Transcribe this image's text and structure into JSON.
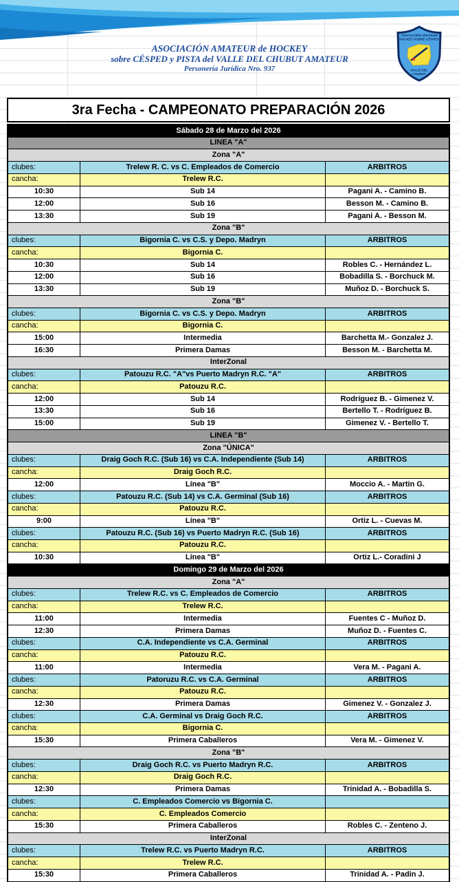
{
  "org": {
    "line1": "ASOCIACIÓN AMATEUR de HOCKEY",
    "line2": "sobre CÉSPED y PISTA del VALLE DEL CHUBUT AMATEUR",
    "line3": "Personería Jurídica Nro. 937"
  },
  "logo": {
    "top1": "ASOCIACIÓN AMATEUR",
    "top2": "HOCKEY SOBRE CÉSPED",
    "bottom1": "VALLE DEL",
    "bottom2": "CHUBUT"
  },
  "title": "3ra Fecha - CAMPEONATO PREPARACIÓN 2026",
  "labels": {
    "clubes": "clubes:",
    "cancha": "cancha:"
  },
  "colors": {
    "cyan": "#A6DBE8",
    "yellow": "#FBF9A5",
    "grayDark": "#9B9B9B",
    "grayLight": "#D8D8D8",
    "navy": "#1F4E9C",
    "swoosh3": "#1C89D4"
  },
  "rows": [
    {
      "type": "date",
      "text": "Sábado 28 de Marzo del 2026"
    },
    {
      "type": "linea",
      "text": "LINEA \"A\""
    },
    {
      "type": "zona",
      "text": "Zona \"A\""
    },
    {
      "type": "clubes",
      "match": "Trelew R. C. vs C. Empleados de Comercio",
      "arbitros": "ARBITROS"
    },
    {
      "type": "cancha",
      "venue": "Trelew R.C."
    },
    {
      "type": "match",
      "time": "10:30",
      "category": "Sub 14",
      "referees": "Pagani A. - Camino B."
    },
    {
      "type": "match",
      "time": "12:00",
      "category": "Sub 16",
      "referees": "Besson M. - Camino B."
    },
    {
      "type": "match",
      "time": "13:30",
      "category": "Sub 19",
      "referees": "Pagani A. - Besson M."
    },
    {
      "type": "zona",
      "text": "Zona \"B\""
    },
    {
      "type": "clubes",
      "match": "Bigornia C.  vs C.S. y Depo. Madryn",
      "arbitros": "ARBITROS"
    },
    {
      "type": "cancha",
      "venue": "Bigornia C."
    },
    {
      "type": "match",
      "time": "10:30",
      "category": "Sub 14",
      "referees": "Robles C. - Hernández L."
    },
    {
      "type": "match",
      "time": "12:00",
      "category": "Sub 16",
      "referees": "Bobadilla S. - Borchuck M."
    },
    {
      "type": "match",
      "time": "13:30",
      "category": "Sub 19",
      "referees": "Muñoz D. - Borchuck S."
    },
    {
      "type": "zona",
      "text": "Zona \"B\""
    },
    {
      "type": "clubes",
      "match": "Bigornia C.  vs C.S. y Depo. Madryn",
      "arbitros": "ARBITROS"
    },
    {
      "type": "cancha",
      "venue": "Bigornia C."
    },
    {
      "type": "match",
      "time": "15:00",
      "category": "Intermedia",
      "referees": "Barchetta M.- Gonzalez J."
    },
    {
      "type": "match",
      "time": "16:30",
      "category": "Primera Damas",
      "referees": "Besson M. - Barchetta M."
    },
    {
      "type": "zona",
      "text": "InterZonal"
    },
    {
      "type": "clubes",
      "match": "Patouzu R.C. \"A\"vs  Puerto Madryn R.C. \"A\"",
      "arbitros": "ARBITROS"
    },
    {
      "type": "cancha",
      "venue": "Patouzu R.C."
    },
    {
      "type": "match",
      "time": "12:00",
      "category": "Sub 14",
      "referees": "Rodríguez B. - Gimenez V."
    },
    {
      "type": "match",
      "time": "13:30",
      "category": "Sub 16",
      "referees": "Bertello T. - Rodríguez B."
    },
    {
      "type": "match",
      "time": "15:00",
      "category": "Sub 19",
      "referees": "Gimenez V. - Bertello T."
    },
    {
      "type": "linea",
      "text": "LINEA \"B\""
    },
    {
      "type": "zona",
      "text": "Zona \"ÚNICA\""
    },
    {
      "type": "clubes",
      "match": "Draig Goch R.C. (Sub 16) vs C.A. Independiente (Sub 14)",
      "arbitros": "ARBITROS"
    },
    {
      "type": "cancha",
      "venue": "Draig Goch R.C."
    },
    {
      "type": "match",
      "time": "12:00",
      "category": "Línea \"B\"",
      "referees": "Moccio A. - Martin G."
    },
    {
      "type": "clubes",
      "match": "Patouzu R.C. (Sub 14) vs C.A. Germinal (Sub 16)",
      "arbitros": "ARBITROS"
    },
    {
      "type": "cancha",
      "venue": "Patouzu R.C."
    },
    {
      "type": "match",
      "time": "9:00",
      "category": "Línea \"B\"",
      "referees": "Ortiz L. - Cuevas M."
    },
    {
      "type": "clubes",
      "match": "Patouzu R.C. (Sub 16) vs  Puerto Madryn R.C. (Sub 16)",
      "arbitros": "ARBITROS"
    },
    {
      "type": "cancha",
      "venue": "Patouzu R.C."
    },
    {
      "type": "match",
      "time": "10:30",
      "category": "Línea \"B\"",
      "referees": "Ortiz L.- Coradini J"
    },
    {
      "type": "date",
      "text": "Domingo 29 de Marzo del 2026"
    },
    {
      "type": "zona",
      "text": "Zona \"A\""
    },
    {
      "type": "clubes",
      "match": "Trelew R.C. vs C. Empleados de Comercio",
      "arbitros": "ARBITROS"
    },
    {
      "type": "cancha",
      "venue": "Trelew R.C."
    },
    {
      "type": "match",
      "time": "11:00",
      "category": "Intermedia",
      "referees": "Fuentes C - Muñoz D."
    },
    {
      "type": "match",
      "time": "12:30",
      "category": "Primera Damas",
      "referees": "Muñoz D. - Fuentes C."
    },
    {
      "type": "clubes",
      "match": "C.A. Independiente vs C.A. Germinal",
      "arbitros": "ARBITROS"
    },
    {
      "type": "cancha",
      "venue": "Patouzu R.C."
    },
    {
      "type": "match",
      "time": "11:00",
      "category": "Intermedia",
      "referees": "Vera M. - Pagani A."
    },
    {
      "type": "clubes",
      "match": "Patoruzu R.C. vs C.A. Germinal",
      "arbitros": "ARBITROS"
    },
    {
      "type": "cancha",
      "venue": "Patouzu R.C."
    },
    {
      "type": "match",
      "time": "12:30",
      "category": "Primera Damas",
      "referees": "Gimenez V. - Gonzalez J."
    },
    {
      "type": "clubes",
      "match": "C.A. Germinal vs Draig Goch R.C.",
      "arbitros": "ARBITROS"
    },
    {
      "type": "cancha",
      "venue": "Bigornia C."
    },
    {
      "type": "match",
      "time": "15:30",
      "category": "Primera Caballeros",
      "referees": "Vera M. - Gimenez V."
    },
    {
      "type": "zona",
      "text": "Zona \"B\""
    },
    {
      "type": "clubes",
      "match": "Draig Goch R.C. vs Puerto Madryn R.C.",
      "arbitros": "ARBITROS"
    },
    {
      "type": "cancha",
      "venue": "Draig Goch R.C."
    },
    {
      "type": "match",
      "time": "12:30",
      "category": "Primera Damas",
      "referees": "Trinidad A. - Bobadilla S."
    },
    {
      "type": "clubes",
      "match": "C. Empleados Comercio vs Bigornia C.",
      "arbitros": ""
    },
    {
      "type": "cancha",
      "venue": "C. Empleados Comercio"
    },
    {
      "type": "match",
      "time": "15:30",
      "category": "Primera Caballeros",
      "referees": "Robles C. - Zenteno J."
    },
    {
      "type": "zona",
      "text": "InterZonal"
    },
    {
      "type": "clubes",
      "match": "Trelew R.C. vs Puerto Madryn R.C.",
      "arbitros": "ARBITROS"
    },
    {
      "type": "cancha",
      "venue": "Trelew R.C."
    },
    {
      "type": "match",
      "time": "15:30",
      "category": "Primera Caballeros",
      "referees": "Trinidad A. - Padin J."
    }
  ]
}
